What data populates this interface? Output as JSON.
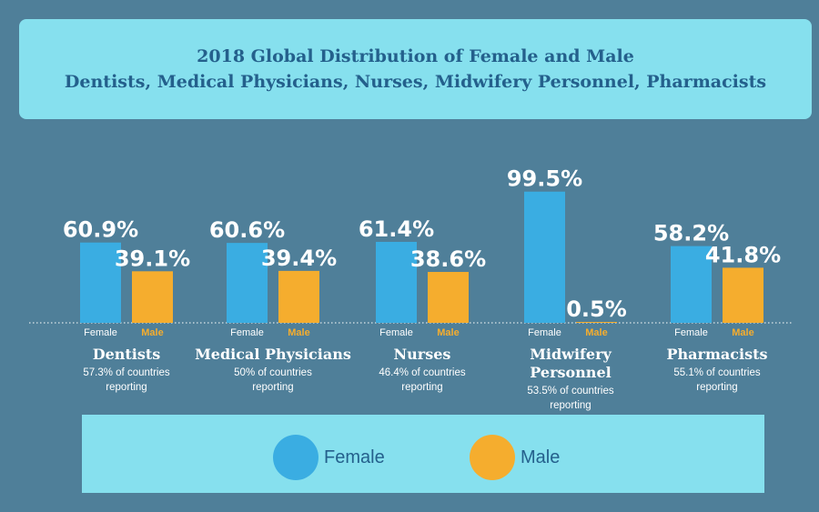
{
  "colors": {
    "female": "#3aade2",
    "male": "#f5ad2e",
    "background": "#4f7f99",
    "panel": "#86e0ee",
    "title": "#24608c"
  },
  "chart_data": {
    "type": "bar",
    "title": "2018 Global Distribution of Female and Male",
    "subtitle": "Dentists, Medical Physicians, Nurses, Midwifery Personnel, Pharmacists",
    "categories": [
      {
        "label_lines": [
          "Dentists"
        ],
        "note_lines": [
          "57.3%  of countries",
          "reporting"
        ]
      },
      {
        "label_lines": [
          "Medical Physicians"
        ],
        "note_lines": [
          "50%  of countries",
          "reporting"
        ]
      },
      {
        "label_lines": [
          "Nurses"
        ],
        "note_lines": [
          "46.4%  of countries",
          "reporting"
        ]
      },
      {
        "label_lines": [
          "Midwifery",
          "Personnel"
        ],
        "note_lines": [
          "53.5%  of countries",
          "reporting"
        ]
      },
      {
        "label_lines": [
          "Pharmacists"
        ],
        "note_lines": [
          "55.1%  of countries",
          "reporting"
        ]
      }
    ],
    "series": [
      {
        "name": "Female",
        "bar_label": "Female",
        "values": [
          60.9,
          60.6,
          61.4,
          99.5,
          58.2
        ],
        "value_labels": [
          "60.9%",
          "60.6%",
          "61.4%",
          "99.5%",
          "58.2%"
        ]
      },
      {
        "name": "Male",
        "bar_label": "Male",
        "values": [
          39.1,
          39.4,
          38.6,
          0.5,
          41.8
        ],
        "value_labels": [
          "39.1%",
          "39.4%",
          "38.6%",
          "0.5%",
          "41.8%"
        ]
      }
    ],
    "ylim": [
      0,
      100
    ],
    "legend": {
      "position": "bottom",
      "items": [
        "Female",
        "Male"
      ]
    }
  }
}
